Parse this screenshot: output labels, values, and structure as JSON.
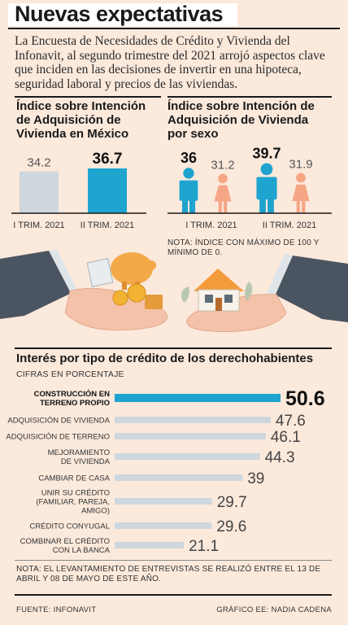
{
  "header": {
    "title": "Nuevas expectativas",
    "intro_normal": "La Encuesta de Necesidades de Crédito y Vivienda del Infonavit, al segundo trimestre del 2021 arrojó ",
    "intro_bold": "aspectos clave que inciden en las decisiones de invertir en una hipoteca, seguridad laboral y precios de las viviendas."
  },
  "panel_left": {
    "title": "Índice sobre Intención de Adquisición de Vivienda en México"
  },
  "panel_right": {
    "title": "Índice sobre Intención de Adquisición de Vivienda por sexo",
    "note": "NOTA: ÍNDICE CON MÁXIMO DE 100 Y MÍNIMO DE 0."
  },
  "bottom_panel": {
    "title": "Interés por tipo de crédito de los derechohabientes",
    "subtitle": "CIFRAS EN PORCENTAJE",
    "note": "NOTA: EL LEVANTAMIENTO DE ENTREVISTAS SE REALIZÓ ENTRE EL 13 DE ABRIL Y 08 DE MAYO DE ESTE AÑO."
  },
  "footer": {
    "source": "FUENTE: INFONAVIT",
    "credit": "GRÁFICO EE: NADIA CADENA"
  },
  "colors": {
    "background": "#fbe9dc",
    "highlight": "#1fa3cf",
    "grey_bar": "#cdd7dd",
    "male": "#1fa3cf",
    "female": "#f6a585"
  },
  "chart_data": [
    {
      "type": "bar",
      "categories": [
        "I TRIM. 2021",
        "II TRIM. 2021"
      ],
      "values": [
        34.2,
        36.7
      ],
      "labels": [
        "34.2",
        "36.7"
      ],
      "ylim": [
        0,
        40
      ]
    },
    {
      "type": "bar",
      "categories": [
        "I TRIM. 2021",
        "II TRIM. 2021"
      ],
      "series": [
        {
          "values": [
            36,
            39.7
          ],
          "labels": [
            "36",
            "39.7"
          ],
          "icon": "man-icon"
        },
        {
          "values": [
            31.2,
            31.9
          ],
          "labels": [
            "31.2",
            "31.9"
          ],
          "icon": "woman-icon"
        }
      ]
    },
    {
      "type": "bar",
      "orientation": "horizontal",
      "categories": [
        [
          "CONSTRUCCIÓN EN",
          "TERRENO PROPIO"
        ],
        [
          "ADQUISICIÓN DE VIVIENDA"
        ],
        [
          "ADQUISICIÓN DE TERRENO"
        ],
        [
          "MEJORAMIENTO",
          "DE VIVIENDA"
        ],
        [
          "CAMBIAR DE CASA"
        ],
        [
          "UNIR SU CRÉDITO",
          "(FAMILIAR, PAREJA,",
          "AMIGO)"
        ],
        [
          "CRÉDITO CONYUGAL"
        ],
        [
          "COMBINAR EL CRÉDITO",
          "CON LA BANCA"
        ]
      ],
      "values": [
        50.6,
        47.6,
        46.1,
        44.3,
        39,
        29.7,
        29.6,
        21.1
      ],
      "labels": [
        "50.6",
        "47.6",
        "46.1",
        "44.3",
        "39",
        "29.7",
        "29.6",
        "21.1"
      ],
      "xlim": [
        0,
        50.6
      ]
    }
  ]
}
